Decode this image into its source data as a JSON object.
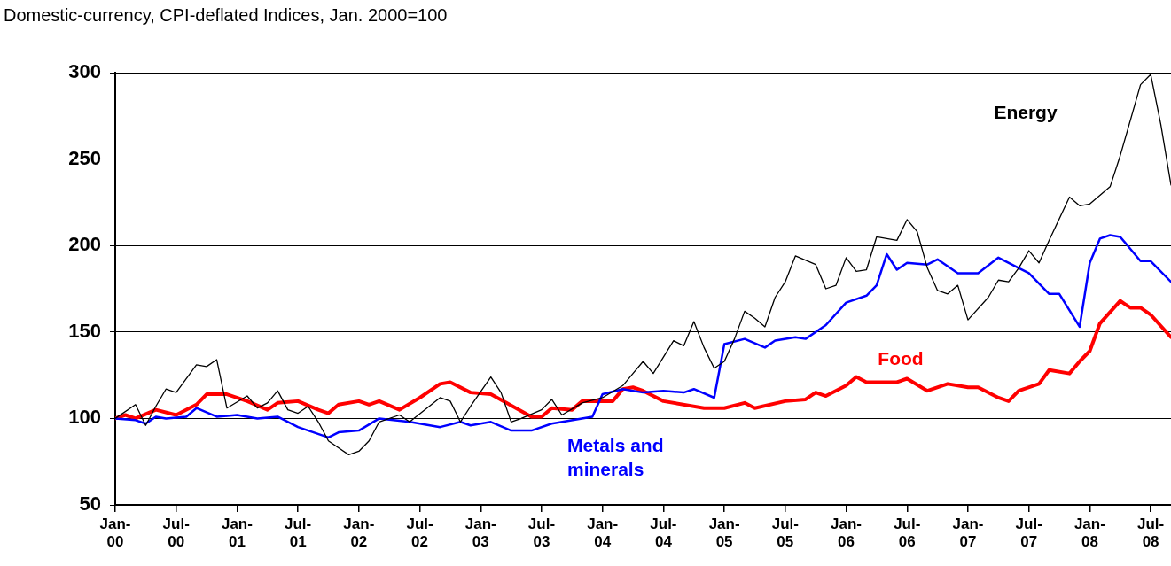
{
  "chart_data": {
    "type": "line",
    "title": "Domestic-currency, CPI-deflated Indices, Jan. 2000=100",
    "xlim": [
      "2000-01",
      "2008-09"
    ],
    "xticks": [
      {
        "value": "2000-01",
        "label": "Jan-00"
      },
      {
        "value": "2000-07",
        "label": "Jul-00"
      },
      {
        "value": "2001-01",
        "label": "Jan-01"
      },
      {
        "value": "2001-07",
        "label": "Jul-01"
      },
      {
        "value": "2002-01",
        "label": "Jan-02"
      },
      {
        "value": "2002-07",
        "label": "Jul-02"
      },
      {
        "value": "2003-01",
        "label": "Jan-03"
      },
      {
        "value": "2003-07",
        "label": "Jul-03"
      },
      {
        "value": "2004-01",
        "label": "Jan-04"
      },
      {
        "value": "2004-07",
        "label": "Jul-04"
      },
      {
        "value": "2005-01",
        "label": "Jan-05"
      },
      {
        "value": "2005-07",
        "label": "Jul-05"
      },
      {
        "value": "2006-01",
        "label": "Jan-06"
      },
      {
        "value": "2006-07",
        "label": "Jul-06"
      },
      {
        "value": "2007-01",
        "label": "Jan-07"
      },
      {
        "value": "2007-07",
        "label": "Jul-07"
      },
      {
        "value": "2008-01",
        "label": "Jan-08"
      },
      {
        "value": "2008-07",
        "label": "Jul-08"
      }
    ],
    "ylim": [
      50,
      300
    ],
    "yticks": [
      50,
      100,
      150,
      200,
      250,
      300
    ],
    "grid": "y",
    "legend": false,
    "marker": "none",
    "series": [
      {
        "name": "Energy",
        "color": "#000000",
        "x": [
          "2000-01",
          "2000-03",
          "2000-04",
          "2000-05",
          "2000-06",
          "2000-07",
          "2000-09",
          "2000-10",
          "2000-11",
          "2000-12",
          "2001-02",
          "2001-03",
          "2001-04",
          "2001-05",
          "2001-06",
          "2001-07",
          "2001-08",
          "2001-09",
          "2001-10",
          "2001-12",
          "2002-01",
          "2002-02",
          "2002-03",
          "2002-05",
          "2002-06",
          "2002-09",
          "2002-10",
          "2002-11",
          "2002-12",
          "2003-02",
          "2003-03",
          "2003-04",
          "2003-05",
          "2003-07",
          "2003-08",
          "2003-09",
          "2003-11",
          "2004-01",
          "2004-03",
          "2004-04",
          "2004-05",
          "2004-06",
          "2004-08",
          "2004-09",
          "2004-10",
          "2004-11",
          "2004-12",
          "2005-01",
          "2005-02",
          "2005-03",
          "2005-04",
          "2005-05",
          "2005-06",
          "2005-07",
          "2005-08",
          "2005-10",
          "2005-11",
          "2005-12",
          "2006-01",
          "2006-02",
          "2006-03",
          "2006-04",
          "2006-06",
          "2006-07",
          "2006-08",
          "2006-09",
          "2006-10",
          "2006-11",
          "2006-12",
          "2007-01",
          "2007-03",
          "2007-04",
          "2007-05",
          "2007-06",
          "2007-07",
          "2007-08",
          "2007-09",
          "2007-11",
          "2007-12",
          "2008-01",
          "2008-03",
          "2008-04",
          "2008-06",
          "2008-07",
          "2008-08",
          "2008-09"
        ],
        "values": [
          100,
          108,
          96,
          107,
          117,
          115,
          131,
          130,
          134,
          106,
          113,
          106,
          109,
          116,
          105,
          103,
          107,
          98,
          87,
          79,
          81,
          87,
          98,
          102,
          98,
          112,
          110,
          98,
          107,
          124,
          115,
          98,
          100,
          105,
          111,
          102,
          109,
          112,
          119,
          126,
          133,
          126,
          145,
          142,
          156,
          141,
          129,
          133,
          146,
          162,
          158,
          153,
          170,
          179,
          194,
          189,
          175,
          177,
          193,
          185,
          186,
          205,
          203,
          215,
          208,
          187,
          174,
          172,
          177,
          157,
          170,
          180,
          179,
          187,
          197,
          190,
          203,
          228,
          223,
          224,
          234,
          252,
          293,
          299,
          270,
          235
        ]
      },
      {
        "name": "Metals and minerals",
        "color": "#0000ff",
        "x": [
          "2000-01",
          "2000-03",
          "2000-04",
          "2000-05",
          "2000-06",
          "2000-08",
          "2000-09",
          "2000-11",
          "2001-01",
          "2001-03",
          "2001-05",
          "2001-07",
          "2001-10",
          "2001-11",
          "2002-01",
          "2002-03",
          "2002-06",
          "2002-09",
          "2002-11",
          "2002-12",
          "2003-02",
          "2003-04",
          "2003-06",
          "2003-08",
          "2003-12",
          "2004-01",
          "2004-03",
          "2004-05",
          "2004-07",
          "2004-09",
          "2004-10",
          "2004-12",
          "2005-01",
          "2005-03",
          "2005-05",
          "2005-06",
          "2005-08",
          "2005-09",
          "2005-11",
          "2006-01",
          "2006-03",
          "2006-04",
          "2006-05",
          "2006-06",
          "2006-07",
          "2006-09",
          "2006-10",
          "2006-12",
          "2007-02",
          "2007-04",
          "2007-06",
          "2007-07",
          "2007-09",
          "2007-10",
          "2007-12",
          "2008-01",
          "2008-02",
          "2008-03",
          "2008-04",
          "2008-06",
          "2008-07",
          "2008-09"
        ],
        "values": [
          100,
          99,
          97,
          101,
          100,
          101,
          106,
          101,
          102,
          100,
          101,
          95,
          89,
          92,
          93,
          100,
          98,
          95,
          98,
          96,
          98,
          93,
          93,
          97,
          101,
          114,
          117,
          115,
          116,
          115,
          117,
          112,
          143,
          146,
          141,
          145,
          147,
          146,
          154,
          167,
          171,
          177,
          195,
          186,
          190,
          189,
          192,
          184,
          184,
          193,
          187,
          184,
          172,
          172,
          153,
          190,
          204,
          206,
          205,
          191,
          191,
          179
        ]
      },
      {
        "name": "Food",
        "color": "#ff0000",
        "x": [
          "2000-01",
          "2000-02",
          "2000-03",
          "2000-05",
          "2000-07",
          "2000-09",
          "2000-10",
          "2000-12",
          "2001-02",
          "2001-04",
          "2001-05",
          "2001-07",
          "2001-09",
          "2001-10",
          "2001-11",
          "2002-01",
          "2002-02",
          "2002-03",
          "2002-05",
          "2002-07",
          "2002-09",
          "2002-10",
          "2002-12",
          "2003-02",
          "2003-06",
          "2003-07",
          "2003-08",
          "2003-10",
          "2003-11",
          "2004-01",
          "2004-02",
          "2004-03",
          "2004-04",
          "2004-05",
          "2004-07",
          "2004-11",
          "2005-01",
          "2005-03",
          "2005-04",
          "2005-07",
          "2005-09",
          "2005-10",
          "2005-11",
          "2006-01",
          "2006-02",
          "2006-03",
          "2006-06",
          "2006-07",
          "2006-09",
          "2006-11",
          "2007-01",
          "2007-02",
          "2007-04",
          "2007-05",
          "2007-06",
          "2007-08",
          "2007-09",
          "2007-11",
          "2007-12",
          "2008-01",
          "2008-02",
          "2008-04",
          "2008-05",
          "2008-06",
          "2008-07",
          "2008-09"
        ],
        "values": [
          100,
          102,
          100,
          105,
          102,
          108,
          114,
          114,
          110,
          105,
          109,
          110,
          105,
          103,
          108,
          110,
          108,
          110,
          105,
          112,
          120,
          121,
          115,
          114,
          101,
          101,
          106,
          105,
          110,
          110,
          110,
          117,
          118,
          116,
          110,
          106,
          106,
          109,
          106,
          110,
          111,
          115,
          113,
          119,
          124,
          121,
          121,
          123,
          116,
          120,
          118,
          118,
          112,
          110,
          116,
          120,
          128,
          126,
          133,
          139,
          155,
          168,
          164,
          164,
          160,
          147
        ]
      }
    ]
  }
}
